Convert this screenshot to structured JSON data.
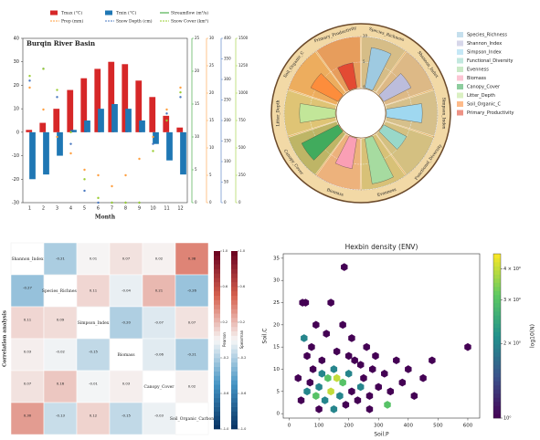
{
  "chart_data": [
    {
      "type": "combo",
      "title": "Burqin River Basin",
      "xlabel": "Month",
      "categories": [
        1,
        2,
        3,
        4,
        5,
        6,
        7,
        8,
        9,
        10,
        11,
        12
      ],
      "ylim": [
        -30,
        40
      ],
      "yticks": [
        -30,
        -20,
        -10,
        0,
        10,
        20,
        30,
        40
      ],
      "y2lim": [
        0,
        25
      ],
      "y2ticks": [
        0,
        5,
        10,
        15,
        20,
        25
      ],
      "y2color": "#2ca02c",
      "y3lim": [
        0,
        30
      ],
      "y3ticks": [
        0,
        5,
        10,
        15,
        20,
        25,
        30
      ],
      "y3color": "#ff9f40",
      "y4lim": [
        0,
        400
      ],
      "y4ticks": [
        0,
        50,
        100,
        150,
        200,
        250,
        300,
        350,
        400
      ],
      "y4color": "#4a78c0",
      "y5lim": [
        0,
        1500
      ],
      "y5ticks": [
        0,
        250,
        500,
        750,
        1000,
        1250,
        1500
      ],
      "y5color": "#9acd32",
      "series": [
        {
          "name": "Tmax (°C)",
          "kind": "bar",
          "color": "#d62728",
          "values": [
            1,
            4,
            10,
            18,
            23,
            27,
            30,
            29,
            22,
            15,
            7,
            2
          ]
        },
        {
          "name": "Tmin (°C)",
          "kind": "bar",
          "color": "#1f77b4",
          "values": [
            -20,
            -18,
            -10,
            1,
            5,
            10,
            12,
            10,
            5,
            -5,
            -12,
            -18
          ]
        },
        {
          "name": "Streamflow (m³/s)",
          "kind": "line",
          "style": "solid",
          "axis": "y2",
          "color": "#2ca02c",
          "values": [
            2,
            2,
            2.5,
            4,
            14,
            24,
            19,
            12,
            7,
            4,
            2,
            2
          ]
        },
        {
          "name": "Prep (mm)",
          "kind": "line",
          "style": "dashed",
          "axis": "y3",
          "color": "#ff9f40",
          "values": [
            21,
            17,
            12,
            9,
            6,
            5,
            3,
            5,
            8,
            12,
            17,
            21
          ]
        },
        {
          "name": "Snow Depth (cm)",
          "kind": "line",
          "style": "dashdot",
          "axis": "y4",
          "color": "#4a78c0",
          "values": [
            297,
            326,
            257,
            143,
            29,
            0,
            0,
            0,
            0,
            143,
            217,
            257
          ]
        },
        {
          "name": "Snow Cover (km²)",
          "kind": "line",
          "style": "dashed",
          "axis": "y5",
          "color": "#9acd32",
          "values": [
            1157,
            1221,
            1029,
            643,
            214,
            43,
            0,
            0,
            0,
            471,
            750,
            1007
          ]
        }
      ]
    },
    {
      "type": "radial_bar",
      "categories": [
        "Species_Richness",
        "Shannon_Index",
        "Simpson_Index",
        "Functional_Diversity",
        "Evenness",
        "Biomass",
        "Canopy_Cover",
        "Litter_Depth",
        "Soil_Organic_C",
        "Primary_Productivity"
      ],
      "colors": [
        "#9ecae1",
        "#bcbddc",
        "#9fd8f0",
        "#99d8c9",
        "#a6dba0",
        "#fa9fb5",
        "#41ab5d",
        "#c2e699",
        "#fd8d3c",
        "#e34a33"
      ],
      "values": [
        8,
        6,
        7,
        5,
        9,
        6,
        8,
        7,
        6,
        5
      ],
      "ylim": [
        0,
        10
      ],
      "yticks": [
        0,
        5,
        10
      ]
    },
    {
      "type": "heatmap",
      "ylabel": "Correlation analysis",
      "labels": [
        "Shannon_Index",
        "Species_Richness",
        "Simpson_Index",
        "Biomass",
        "Canopy_Cover",
        "Soil_Organic_Carbon"
      ],
      "values": [
        [
          null,
          -0.21,
          0.01,
          0.07,
          0.02,
          0.38
        ],
        [
          -0.27,
          null,
          0.11,
          -0.04,
          0.21,
          -0.26
        ],
        [
          0.11,
          0.09,
          null,
          -0.2,
          -0.07,
          0.07
        ],
        [
          0.03,
          -0.02,
          -0.15,
          null,
          -0.06,
          -0.21
        ],
        [
          0.07,
          0.16,
          -0.01,
          0.03,
          null,
          0.02
        ],
        [
          0.3,
          -0.13,
          0.12,
          -0.15,
          -0.03,
          null
        ]
      ],
      "value_labels": [
        [
          null,
          "-0.21",
          "0.01",
          "0.07",
          "0.02",
          "0.38"
        ],
        [
          null,
          null,
          "0.11",
          "-0.04",
          "0.21",
          "-0.26"
        ],
        [
          "0.11",
          "0.09",
          null,
          "-0.20",
          "-0.07",
          "0.07"
        ],
        [
          "0.03",
          "-0.02",
          "-0.15",
          null,
          "-0.06",
          "-0.21"
        ],
        [
          "0.07",
          "0.16",
          "-0.01",
          "0.03",
          null,
          "0.02"
        ],
        [
          "0.30",
          "-0.13",
          "0.12",
          "-0.15",
          "-0.03",
          null
        ]
      ],
      "colorbars": [
        "Pearson",
        "Spearman"
      ],
      "zlim": [
        -1,
        1
      ],
      "zticks": [
        {
          "value": -1,
          "label": "-1.0"
        },
        -0.6,
        -0.2,
        0.2,
        0.6,
        {
          "value": 1,
          "label": "1.0"
        }
      ]
    },
    {
      "type": "hexbin",
      "title": "Hexbin density (ENV)",
      "xlabel": "Soil.P",
      "ylabel": "Soil.C",
      "colorbar_label": "log10(N)",
      "xlim": [
        -20,
        640
      ],
      "xticks": [
        0,
        100,
        200,
        300,
        400,
        500,
        600
      ],
      "ylim": [
        -1,
        36
      ],
      "yticks": [
        0,
        5,
        10,
        15,
        20,
        25,
        30,
        35
      ],
      "clim": [
        1,
        4.6
      ],
      "log_color": true,
      "cticks": [
        {
          "value": 1,
          "label": "10⁰"
        },
        {
          "value": 2,
          "label": "2 × 10⁰"
        },
        {
          "value": 3,
          "label": "3 × 10⁰"
        },
        {
          "value": 4,
          "label": "4 × 10⁰"
        }
      ],
      "x": [
        30,
        45,
        55,
        40,
        60,
        70,
        80,
        90,
        100,
        110,
        120,
        130,
        140,
        150,
        160,
        170,
        180,
        190,
        200,
        210,
        220,
        230,
        240,
        250,
        260,
        270,
        280,
        300,
        320,
        340,
        360,
        380,
        400,
        420,
        450,
        480,
        600,
        185,
        180,
        50,
        75,
        125,
        210,
        100,
        150,
        270,
        330,
        160,
        110,
        240,
        60,
        200,
        290,
        90,
        140
      ],
      "y": [
        8,
        25,
        25,
        3,
        5,
        7,
        10,
        4,
        6,
        12,
        3,
        8,
        5,
        10,
        14,
        4,
        7,
        2,
        9,
        5,
        12,
        3,
        6,
        8,
        15,
        4,
        10,
        6,
        9,
        5,
        12,
        7,
        10,
        4,
        8,
        12,
        15,
        33,
        20,
        17,
        15,
        18,
        17,
        1,
        1,
        1,
        2,
        8,
        9,
        11,
        13,
        13,
        13,
        20,
        25
      ],
      "values": [
        1,
        1,
        1,
        1,
        2,
        1,
        1,
        3,
        2,
        1,
        2,
        3,
        4,
        2,
        1,
        2,
        3,
        1,
        2,
        1,
        1,
        1,
        2,
        1,
        1,
        1,
        1,
        1,
        1,
        1,
        1,
        1,
        1,
        1,
        1,
        1,
        1,
        1,
        1,
        2,
        1,
        1,
        1,
        1,
        2,
        1,
        3,
        4,
        2,
        1,
        1,
        1,
        1,
        1,
        1
      ]
    }
  ]
}
